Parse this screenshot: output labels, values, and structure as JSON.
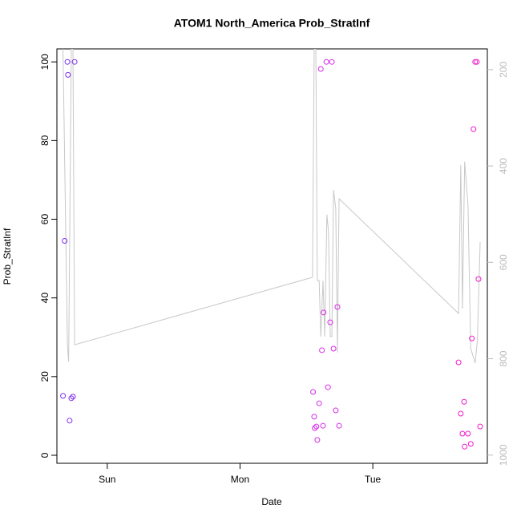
{
  "chart_data": {
    "type": "scatter",
    "title": "ATOM1 North_America Prob_StratInf",
    "xlabel": "Date",
    "ylabel": "Prob_StratInf",
    "xlim": [
      -9.1,
      68.7
    ],
    "xticks": [
      {
        "value": 0,
        "label": "Sun"
      },
      {
        "value": 24,
        "label": "Mon"
      },
      {
        "value": 48,
        "label": "Tue"
      }
    ],
    "ylim": [
      -2.04,
      103.3
    ],
    "yticks": [
      0,
      20,
      40,
      60,
      80,
      100
    ],
    "y2lim": [
      1017,
      157
    ],
    "y2ticks": [
      200,
      400,
      600,
      800,
      1000
    ],
    "series": [
      {
        "type": "scatter",
        "x": [
          -7.7,
          -8.0,
          -7.2,
          -7.1,
          -6.8,
          -6.5,
          -6.2,
          -5.9,
          37.2,
          37.4,
          37.5,
          37.8,
          37.97,
          38.3,
          38.6,
          38.8,
          39.0,
          39.1,
          39.6,
          39.9,
          40.3,
          40.6,
          40.9,
          41.3,
          41.6,
          41.9,
          63.5,
          63.9,
          64.2,
          64.5,
          64.6,
          65.2,
          65.7,
          65.9,
          66.2,
          66.5,
          66.8,
          67.1,
          67.4
        ],
        "values": [
          54.5,
          15.1,
          100,
          96.7,
          8.8,
          14.5,
          14.9,
          100,
          16.1,
          9.8,
          6.9,
          7.3,
          3.9,
          13.2,
          98.2,
          26.7,
          7.5,
          36.3,
          100,
          17.3,
          33.8,
          100,
          27.1,
          11.4,
          37.7,
          7.5,
          23.6,
          10.6,
          5.5,
          13.6,
          2.2,
          5.5,
          2.9,
          29.7,
          82.9,
          100,
          100,
          44.8,
          7.3
        ],
        "colors": [
          "#7a2ef0",
          "#7a2ef0",
          "#7a2ef0",
          "#7a2ef0",
          "#7e2cee",
          "#7e2cee",
          "#7e2cee",
          "#802bee",
          "#d52ae8",
          "#d52ae8",
          "#d52ae8",
          "#d52ae8",
          "#d52ae8",
          "#d52ae8",
          "#d52ae8",
          "#d829e8",
          "#d829e8",
          "#d829e8",
          "#d829e8",
          "#d829e8",
          "#d829e8",
          "#da28e8",
          "#da28e8",
          "#da28e8",
          "#da28e8",
          "#da28e8",
          "#ee1ccc",
          "#ee1ccc",
          "#ee1ccc",
          "#ee1ccc",
          "#ee1ccc",
          "#ee1ccc",
          "#ee1ccc",
          "#f01ac8",
          "#f01ac8",
          "#f01ac8",
          "#f01ac8",
          "#f01ac8",
          "#f01ac8"
        ]
      },
      {
        "type": "line",
        "axis": "y2",
        "color": "#c8c8c8",
        "x": [
          -8.0,
          -7.2,
          -6.98,
          -6.5,
          -6.2,
          -5.9,
          37.1,
          37.4,
          37.7,
          37.97,
          38.3,
          38.6,
          39.0,
          39.3,
          39.7,
          40.0,
          40.3,
          40.6,
          40.9,
          41.3,
          41.6,
          41.9,
          63.5,
          63.9,
          64.2,
          64.6,
          65.2,
          65.7,
          66.5,
          66.9,
          67.4
        ],
        "values": [
          157,
          771,
          806,
          157,
          157,
          771,
          631,
          157,
          157,
          638,
          638,
          754,
          638,
          754,
          501,
          538,
          754,
          754,
          450,
          488,
          787,
          468,
          706,
          398,
          696,
          391,
          480,
          779,
          809,
          762,
          558
        ]
      }
    ]
  }
}
